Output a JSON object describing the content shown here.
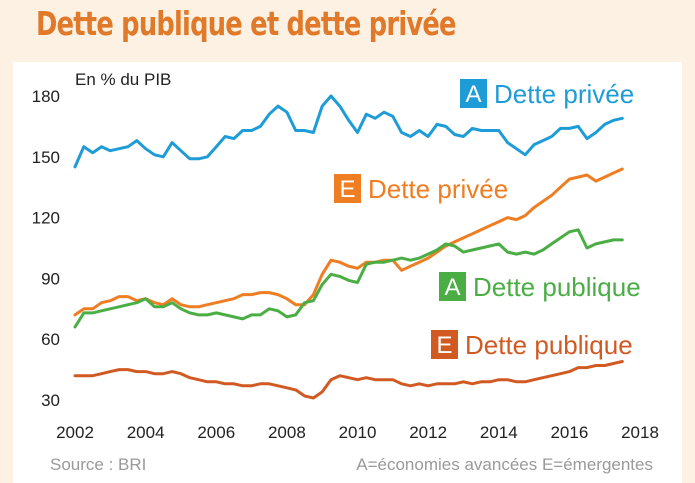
{
  "title": "Dette publique et dette privée",
  "chart_data": {
    "type": "line",
    "ylabel": "En % du PIB",
    "ylim": [
      30,
      180
    ],
    "yticks": [
      30,
      60,
      90,
      120,
      150,
      180
    ],
    "xlim": [
      2002,
      2018
    ],
    "xticks": [
      2002,
      2004,
      2006,
      2008,
      2010,
      2012,
      2014,
      2016,
      2018
    ],
    "grid": false,
    "series": [
      {
        "name": "Dette privée",
        "badge": "A",
        "color": "#1e9cd7",
        "x": [
          2002,
          2002.25,
          2002.5,
          2002.75,
          2003,
          2003.25,
          2003.5,
          2003.75,
          2004,
          2004.25,
          2004.5,
          2004.75,
          2005,
          2005.25,
          2005.5,
          2005.75,
          2006,
          2006.25,
          2006.5,
          2006.75,
          2007,
          2007.25,
          2007.5,
          2007.75,
          2008,
          2008.25,
          2008.5,
          2008.75,
          2009,
          2009.25,
          2009.5,
          2009.75,
          2010,
          2010.25,
          2010.5,
          2010.75,
          2011,
          2011.25,
          2011.5,
          2011.75,
          2012,
          2012.25,
          2012.5,
          2012.75,
          2013,
          2013.25,
          2013.5,
          2013.75,
          2014,
          2014.25,
          2014.5,
          2014.75,
          2015,
          2015.25,
          2015.5,
          2015.75,
          2016,
          2016.25,
          2016.5,
          2016.75,
          2017,
          2017.25,
          2017.5
        ],
        "values": [
          145,
          155,
          152,
          155,
          153,
          154,
          155,
          158,
          154,
          151,
          150,
          157,
          153,
          149,
          149,
          150,
          155,
          160,
          159,
          163,
          163,
          165,
          171,
          175,
          172,
          163,
          163,
          162,
          175,
          180,
          175,
          168,
          162,
          171,
          169,
          172,
          170,
          162,
          160,
          163,
          160,
          166,
          165,
          161,
          160,
          164,
          163,
          163,
          163,
          157,
          154,
          151,
          156,
          158,
          160,
          164,
          164,
          165,
          159,
          162,
          166,
          168,
          169
        ]
      },
      {
        "name": "Dette privée",
        "badge": "E",
        "color": "#ef7d22",
        "x": [
          2002,
          2002.25,
          2002.5,
          2002.75,
          2003,
          2003.25,
          2003.5,
          2003.75,
          2004,
          2004.25,
          2004.5,
          2004.75,
          2005,
          2005.25,
          2005.5,
          2005.75,
          2006,
          2006.25,
          2006.5,
          2006.75,
          2007,
          2007.25,
          2007.5,
          2007.75,
          2008,
          2008.25,
          2008.5,
          2008.75,
          2009,
          2009.25,
          2009.5,
          2009.75,
          2010,
          2010.25,
          2010.5,
          2010.75,
          2011,
          2011.25,
          2011.5,
          2011.75,
          2012,
          2012.25,
          2012.5,
          2012.75,
          2013,
          2013.25,
          2013.5,
          2013.75,
          2014,
          2014.25,
          2014.5,
          2014.75,
          2015,
          2015.25,
          2015.5,
          2015.75,
          2016,
          2016.25,
          2016.5,
          2016.75,
          2017,
          2017.25,
          2017.5
        ],
        "values": [
          72,
          75,
          75,
          78,
          79,
          81,
          81,
          79,
          80,
          78,
          77,
          80,
          77,
          76,
          76,
          77,
          78,
          79,
          80,
          82,
          82,
          83,
          83,
          82,
          80,
          77,
          77,
          82,
          92,
          99,
          98,
          96,
          95,
          98,
          98,
          99,
          99,
          94,
          96,
          98,
          100,
          103,
          106,
          108,
          110,
          112,
          114,
          116,
          118,
          120,
          119,
          121,
          125,
          128,
          131,
          135,
          139,
          140,
          141,
          138,
          140,
          142,
          144
        ]
      },
      {
        "name": "Dette publique",
        "badge": "A",
        "color": "#4aae45",
        "x": [
          2002,
          2002.25,
          2002.5,
          2002.75,
          2003,
          2003.25,
          2003.5,
          2003.75,
          2004,
          2004.25,
          2004.5,
          2004.75,
          2005,
          2005.25,
          2005.5,
          2005.75,
          2006,
          2006.25,
          2006.5,
          2006.75,
          2007,
          2007.25,
          2007.5,
          2007.75,
          2008,
          2008.25,
          2008.5,
          2008.75,
          2009,
          2009.25,
          2009.5,
          2009.75,
          2010,
          2010.25,
          2010.5,
          2010.75,
          2011,
          2011.25,
          2011.5,
          2011.75,
          2012,
          2012.25,
          2012.5,
          2012.75,
          2013,
          2013.25,
          2013.5,
          2013.75,
          2014,
          2014.25,
          2014.5,
          2014.75,
          2015,
          2015.25,
          2015.5,
          2015.75,
          2016,
          2016.25,
          2016.5,
          2016.75,
          2017,
          2017.25,
          2017.5
        ],
        "values": [
          66,
          73,
          73,
          74,
          75,
          76,
          77,
          78,
          80,
          76,
          76,
          78,
          75,
          73,
          72,
          72,
          73,
          72,
          71,
          70,
          72,
          72,
          75,
          74,
          71,
          72,
          78,
          79,
          87,
          92,
          91,
          89,
          88,
          97,
          98,
          98,
          99,
          100,
          99,
          100,
          102,
          104,
          107,
          106,
          103,
          104,
          105,
          106,
          107,
          103,
          102,
          103,
          102,
          104,
          107,
          110,
          113,
          114,
          105,
          107,
          108,
          109,
          109
        ]
      },
      {
        "name": "Dette publique",
        "badge": "E",
        "color": "#d15a22",
        "x": [
          2002,
          2002.25,
          2002.5,
          2002.75,
          2003,
          2003.25,
          2003.5,
          2003.75,
          2004,
          2004.25,
          2004.5,
          2004.75,
          2005,
          2005.25,
          2005.5,
          2005.75,
          2006,
          2006.25,
          2006.5,
          2006.75,
          2007,
          2007.25,
          2007.5,
          2007.75,
          2008,
          2008.25,
          2008.5,
          2008.75,
          2009,
          2009.25,
          2009.5,
          2009.75,
          2010,
          2010.25,
          2010.5,
          2010.75,
          2011,
          2011.25,
          2011.5,
          2011.75,
          2012,
          2012.25,
          2012.5,
          2012.75,
          2013,
          2013.25,
          2013.5,
          2013.75,
          2014,
          2014.25,
          2014.5,
          2014.75,
          2015,
          2015.25,
          2015.5,
          2015.75,
          2016,
          2016.25,
          2016.5,
          2016.75,
          2017,
          2017.25,
          2017.5
        ],
        "values": [
          42,
          42,
          42,
          43,
          44,
          45,
          45,
          44,
          44,
          43,
          43,
          44,
          43,
          41,
          40,
          39,
          39,
          38,
          38,
          37,
          37,
          38,
          38,
          37,
          36,
          35,
          32,
          31,
          34,
          40,
          42,
          41,
          40,
          41,
          40,
          40,
          40,
          38,
          37,
          38,
          37,
          38,
          38,
          38,
          39,
          38,
          39,
          39,
          40,
          40,
          39,
          39,
          40,
          41,
          42,
          43,
          44,
          46,
          46,
          47,
          47,
          48,
          49
        ]
      }
    ]
  },
  "footer": {
    "source": "Source : BRI",
    "legend_note": "A=économies avancées E=émergentes"
  }
}
